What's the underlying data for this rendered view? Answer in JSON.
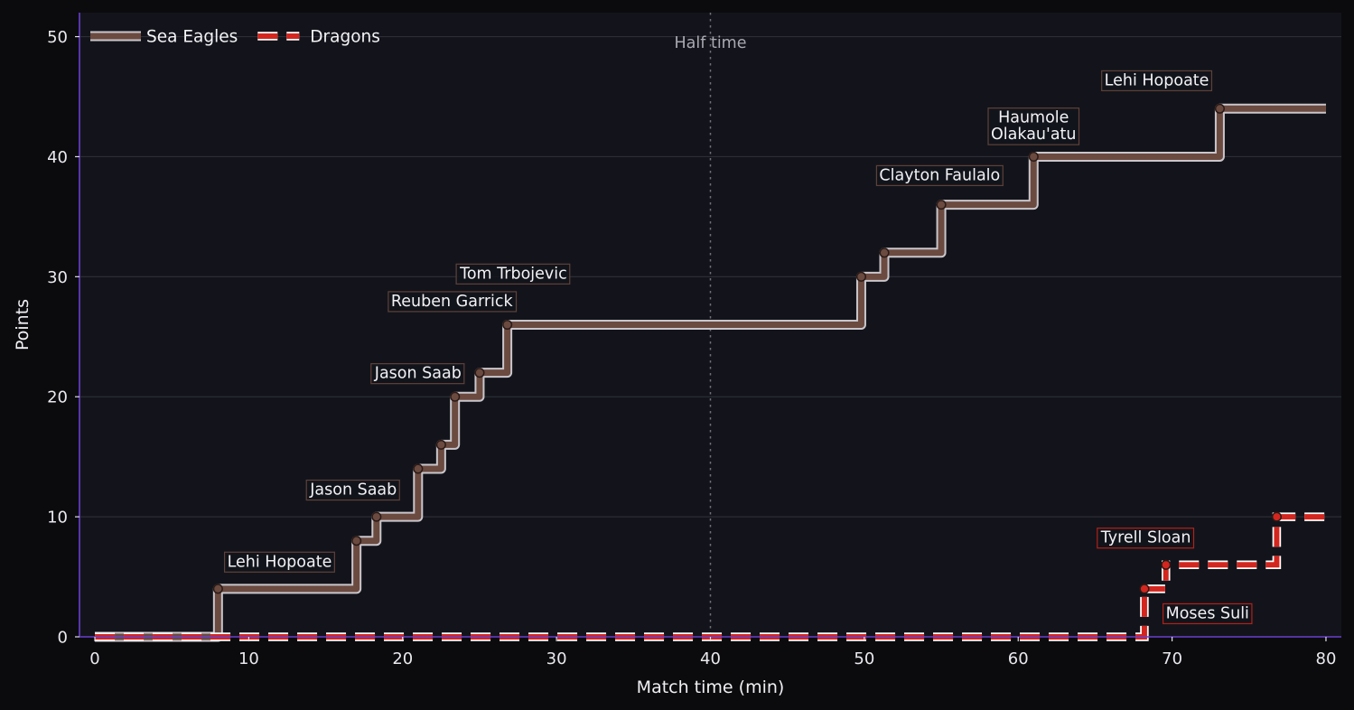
{
  "chart_data": {
    "type": "line",
    "step": true,
    "xlabel": "Match time (min)",
    "ylabel": "Points",
    "xlim": [
      -1,
      81
    ],
    "ylim": [
      0,
      52
    ],
    "xticks": [
      0,
      10,
      20,
      30,
      40,
      50,
      60,
      70,
      80
    ],
    "yticks": [
      0,
      10,
      20,
      30,
      40,
      50
    ],
    "grid": "horizontal",
    "legend_position": "top-left",
    "colors": {
      "figure_bg": "#0b0b0e",
      "axes_bg": "#13141b",
      "spine": "#6a3fd0",
      "grid": "#2c2d35",
      "halftime_line": "#6f6f7a"
    },
    "vline": {
      "x": 40,
      "label": "Half time"
    },
    "series": [
      {
        "name": "Sea Eagles",
        "color": "#6b4a40",
        "edge_color": "#c9c6cc",
        "style": "solid",
        "points": [
          [
            0,
            0
          ],
          [
            8,
            4
          ],
          [
            17,
            8
          ],
          [
            18.3,
            10
          ],
          [
            21,
            14
          ],
          [
            22.5,
            16
          ],
          [
            23.4,
            20
          ],
          [
            25,
            22
          ],
          [
            26.8,
            26
          ],
          [
            49.8,
            30
          ],
          [
            51.3,
            32
          ],
          [
            55,
            36
          ],
          [
            61,
            40
          ],
          [
            73.1,
            44
          ],
          [
            80,
            44
          ]
        ]
      },
      {
        "name": "Dragons",
        "color": "#d3261f",
        "edge_color": "#ffffff",
        "style": "dashed",
        "points": [
          [
            0,
            0
          ],
          [
            68.2,
            4
          ],
          [
            69.6,
            6
          ],
          [
            76.8,
            10
          ],
          [
            80,
            10
          ]
        ]
      }
    ],
    "annotations": [
      {
        "series": "Sea Eagles",
        "text": "Lehi Hopoate",
        "x": 8,
        "y": 4,
        "label_x": 12,
        "label_y": 6.3
      },
      {
        "series": "Sea Eagles",
        "text": "Jason Saab",
        "x": 17,
        "y": 8,
        "label_x": 16.8,
        "label_y": 12.3
      },
      {
        "series": "Sea Eagles",
        "text": "Jason Saab",
        "x": 23.4,
        "y": 20,
        "label_x": 21,
        "label_y": 22
      },
      {
        "series": "Sea Eagles",
        "text": "Reuben Garrick",
        "x": 26.8,
        "y": 26,
        "label_x": 23.2,
        "label_y": 28
      },
      {
        "series": "Sea Eagles",
        "text": "Tom Trbojevic",
        "x": 26.8,
        "y": 26,
        "label_x": 27.2,
        "label_y": 30.3
      },
      {
        "series": "Sea Eagles",
        "text": "Clayton Faulalo",
        "x": 55,
        "y": 36,
        "label_x": 54.9,
        "label_y": 38.5
      },
      {
        "series": "Sea Eagles",
        "text": "Haumole\nOlakau'atu",
        "x": 61,
        "y": 40,
        "label_x": 61,
        "label_y": 42.6
      },
      {
        "series": "Sea Eagles",
        "text": "Lehi Hopoate",
        "x": 73.1,
        "y": 44,
        "label_x": 69,
        "label_y": 46.4
      },
      {
        "series": "Dragons",
        "text": "Tyrell Sloan",
        "x": 69.6,
        "y": 6,
        "label_x": 68.3,
        "label_y": 8.3
      },
      {
        "series": "Dragons",
        "text": "Moses Suli",
        "x": 68.2,
        "y": 4,
        "label_x": 72.3,
        "label_y": 2
      }
    ]
  }
}
